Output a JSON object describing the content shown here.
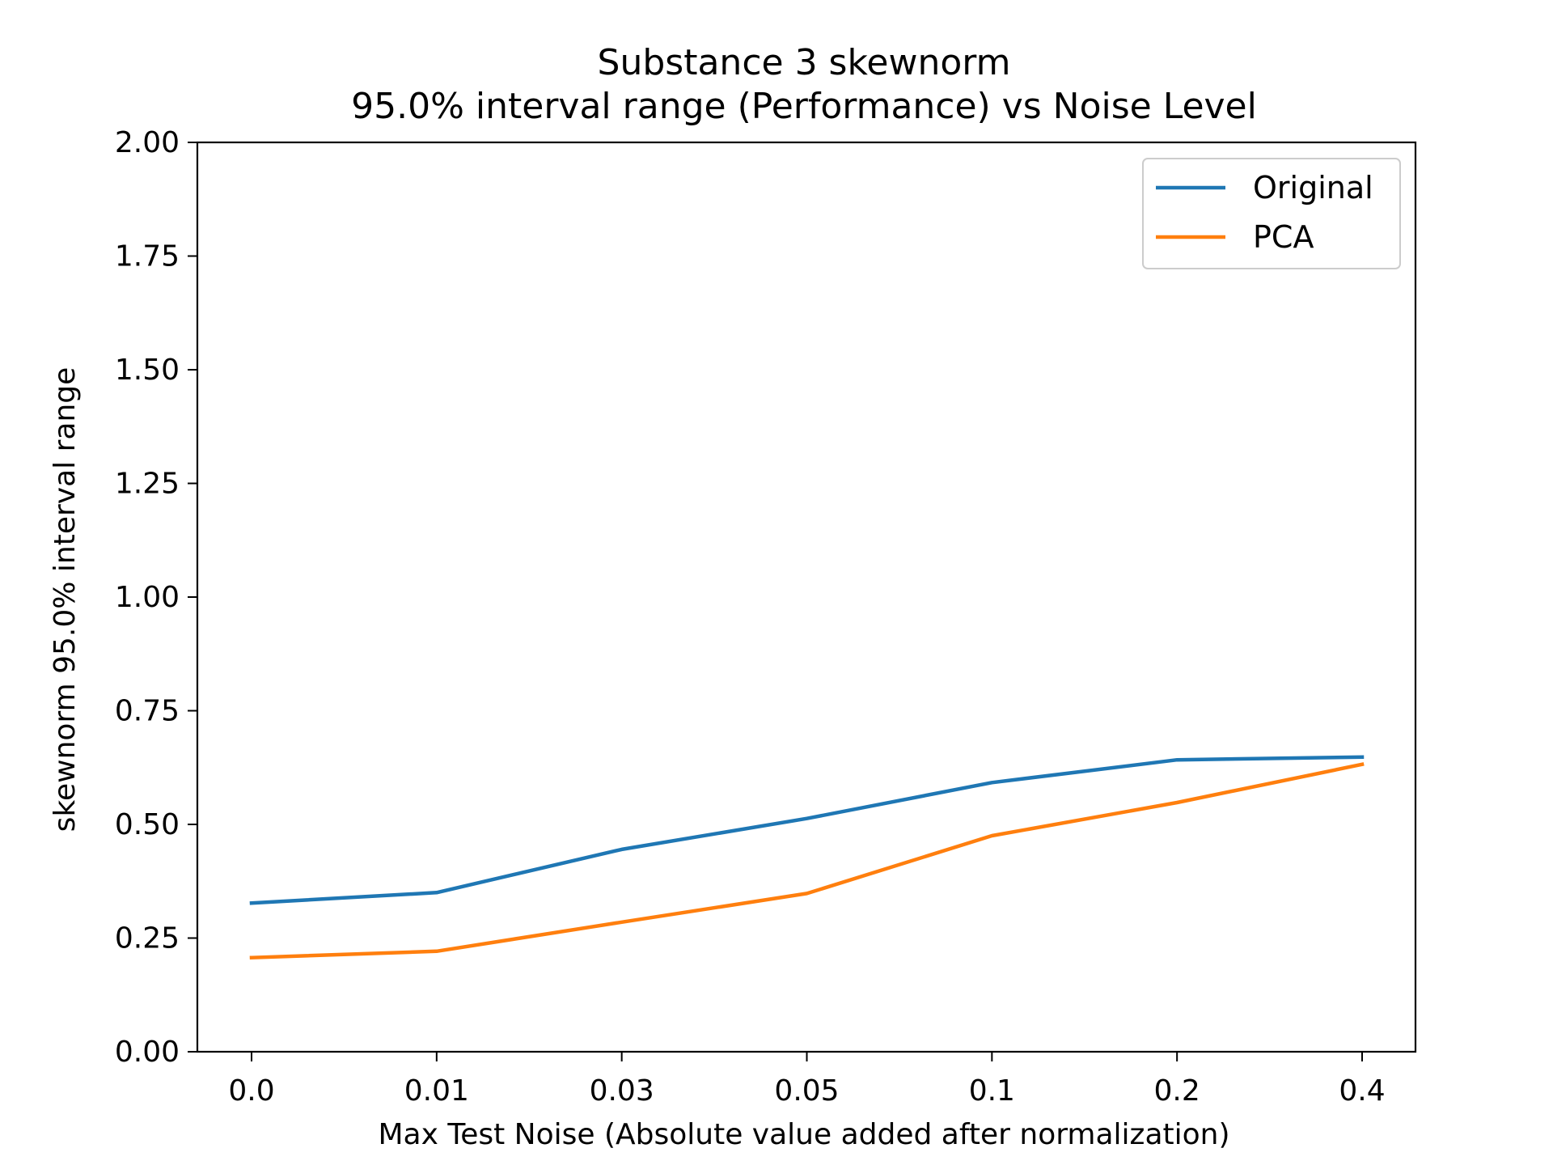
{
  "chart_data": {
    "type": "line",
    "title": "Substance 3 skewnorm",
    "subtitle": "95.0% interval range (Performance) vs Noise Level",
    "xlabel": "Max Test Noise (Absolute value added after normalization)",
    "ylabel": "skewnorm 95.0% interval range",
    "categories": [
      "0.0",
      "0.01",
      "0.03",
      "0.05",
      "0.1",
      "0.2",
      "0.4"
    ],
    "ylim": [
      0,
      2
    ],
    "yticks": [
      "0.00",
      "0.25",
      "0.50",
      "0.75",
      "1.00",
      "1.25",
      "1.50",
      "1.75",
      "2.00"
    ],
    "grid": false,
    "legend_position": "top-right",
    "series": [
      {
        "name": "Original",
        "color": "#1f77b4",
        "values": [
          0.327,
          0.35,
          0.445,
          0.513,
          0.592,
          0.642,
          0.648
        ]
      },
      {
        "name": "PCA",
        "color": "#ff7f0e",
        "values": [
          0.207,
          0.221,
          0.285,
          0.348,
          0.475,
          0.548,
          0.632
        ]
      }
    ]
  }
}
